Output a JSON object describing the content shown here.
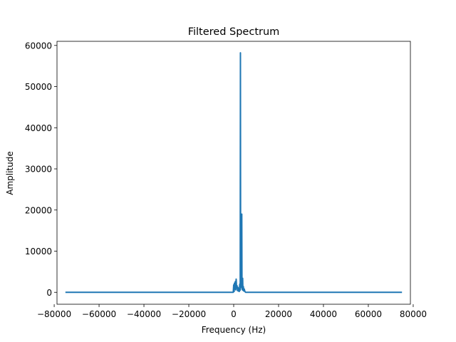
{
  "chart_data": {
    "type": "line",
    "title": "Filtered Spectrum",
    "xlabel": "Frequency (Hz)",
    "ylabel": "Amplitude",
    "xlim": [
      -78750,
      78750
    ],
    "ylim": [
      -2900,
      61000
    ],
    "grid": false,
    "x_ticks": [
      {
        "value": -80000,
        "label": "−80000"
      },
      {
        "value": -60000,
        "label": "−60000"
      },
      {
        "value": -40000,
        "label": "−40000"
      },
      {
        "value": -20000,
        "label": "−20000"
      },
      {
        "value": 0,
        "label": "0"
      },
      {
        "value": 20000,
        "label": "20000"
      },
      {
        "value": 40000,
        "label": "40000"
      },
      {
        "value": 60000,
        "label": "60000"
      },
      {
        "value": 80000,
        "label": "80000"
      }
    ],
    "y_ticks": [
      {
        "value": 0,
        "label": "0"
      },
      {
        "value": 10000,
        "label": "10000"
      },
      {
        "value": 20000,
        "label": "20000"
      },
      {
        "value": 30000,
        "label": "30000"
      },
      {
        "value": 40000,
        "label": "40000"
      },
      {
        "value": 50000,
        "label": "50000"
      },
      {
        "value": 60000,
        "label": "60000"
      }
    ],
    "series": [
      {
        "color": "#1f77b4",
        "x": [
          -75000,
          -200,
          0,
          200,
          300,
          500,
          700,
          900,
          1100,
          1300,
          1500,
          1700,
          1900,
          2100,
          2300,
          2500,
          2700,
          2900,
          3000,
          3100,
          3300,
          3500,
          3600,
          3700,
          3800,
          3900,
          4000,
          4100,
          4300,
          4500,
          4700,
          5000,
          5300,
          75000
        ],
        "y": [
          0,
          0,
          1800,
          200,
          2200,
          800,
          2600,
          600,
          3200,
          1000,
          1600,
          400,
          1200,
          300,
          900,
          200,
          2000,
          500,
          58200,
          1500,
          3000,
          1200,
          19000,
          800,
          2400,
          600,
          3400,
          500,
          1400,
          300,
          800,
          200,
          0,
          0
        ]
      }
    ]
  }
}
